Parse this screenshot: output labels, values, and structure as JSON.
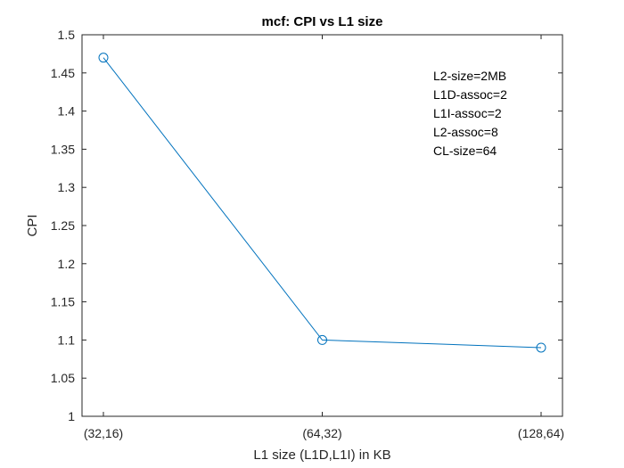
{
  "chart_data": {
    "type": "line",
    "title": "mcf: CPI vs L1 size",
    "xlabel": "L1 size (L1D,L1I) in KB",
    "ylabel": "CPI",
    "categories": [
      "(32,16)",
      "(64,32)",
      "(128,64)"
    ],
    "values": [
      1.47,
      1.1,
      1.09
    ],
    "ylim": [
      1,
      1.5
    ],
    "yticks": [
      "1",
      "1.05",
      "1.1",
      "1.15",
      "1.2",
      "1.25",
      "1.3",
      "1.35",
      "1.4",
      "1.45",
      "1.5"
    ],
    "annotation": [
      "L2-size=2MB",
      "L1D-assoc=2",
      "L1I-assoc=2",
      "L2-assoc=8",
      "CL-size=64"
    ],
    "grid": false,
    "marker": "circle",
    "line_color": "#0072BD"
  }
}
